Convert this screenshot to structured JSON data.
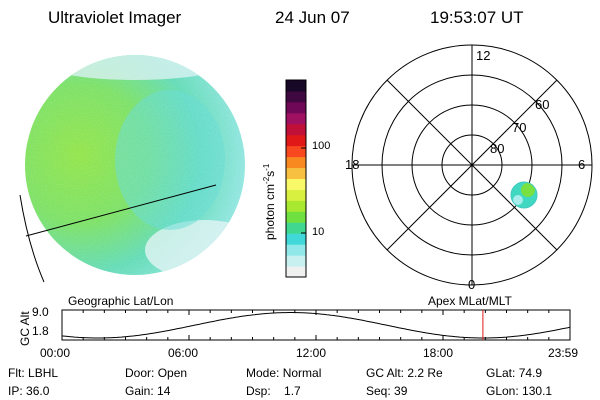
{
  "header": {
    "title": "Ultraviolet Imager",
    "date": "24 Jun 07",
    "time": "19:53:07 UT"
  },
  "colorbar": {
    "unit": "photon cm",
    "unit_sup1": "-2",
    "unit_mid": "s",
    "unit_sup2": "-1",
    "tick_100": "100",
    "tick_10": "10",
    "colors": [
      "#f0f0f0",
      "#c8f0f0",
      "#90e8e8",
      "#40d8d8",
      "#40d890",
      "#70e040",
      "#a8e830",
      "#d8f040",
      "#f8f868",
      "#f8c040",
      "#f88820",
      "#f84820",
      "#e01818",
      "#c01038",
      "#a01060",
      "#700858",
      "#400840",
      "#180828"
    ]
  },
  "polar": {
    "labels": {
      "top": "12",
      "left": "18",
      "right": "6",
      "bottom": "0"
    },
    "lat_labels": [
      "60",
      "70",
      "80"
    ]
  },
  "timeline": {
    "left_label": "Geographic Lat/Lon",
    "right_label": "Apex  MLat/MLT",
    "axis_label": "GC Alt",
    "y_top": "9.0",
    "y_bottom": "1.8",
    "ticks": [
      "00:00",
      "06:00",
      "12:00",
      "18:00",
      "23:59"
    ],
    "marker_hour": 19.885,
    "marker_color": "#e01818"
  },
  "info": {
    "row1": [
      {
        "label": "Flt:",
        "value": "LBHL"
      },
      {
        "label": "Door:",
        "value": "Open"
      },
      {
        "label": "Mode:",
        "value": "Normal"
      },
      {
        "label": "GC Alt:",
        "value": "2.2 Re"
      },
      {
        "label": "GLat:",
        "value": "74.9"
      }
    ],
    "row2": [
      {
        "label": "IP:",
        "value": "36.0"
      },
      {
        "label": "Gain:",
        "value": "14"
      },
      {
        "label": "Dsp:",
        "value": "1.7"
      },
      {
        "label": "Seq:",
        "value": "39"
      },
      {
        "label": "GLon:",
        "value": "130.1"
      }
    ]
  }
}
